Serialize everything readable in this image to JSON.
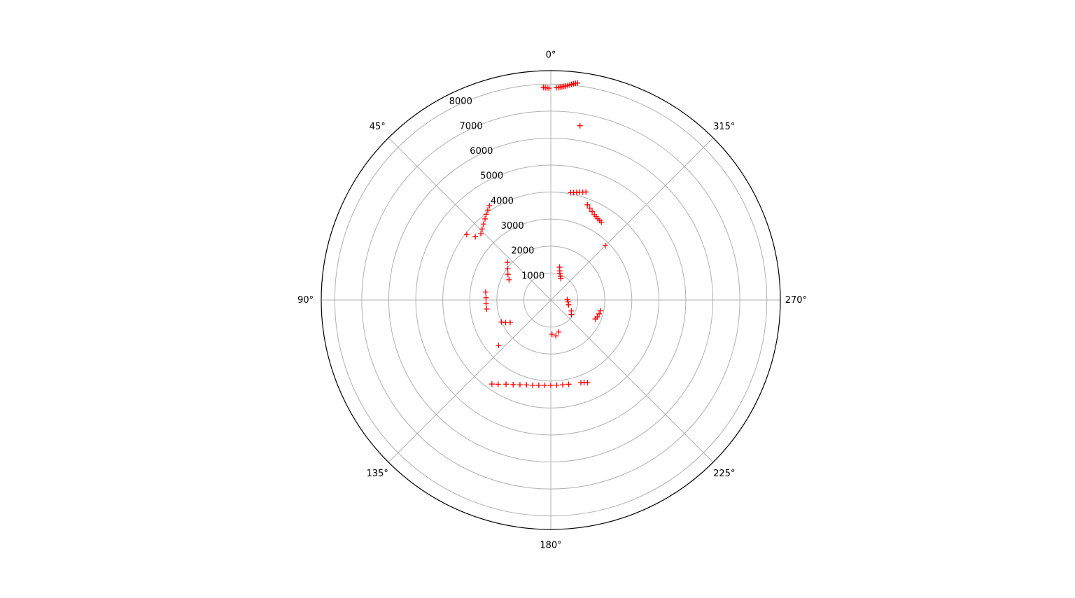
{
  "chart_data": {
    "type": "scatter",
    "projection": "polar",
    "theta_zero_location": "N",
    "theta_direction": "counterclockwise",
    "marker": "+",
    "marker_color": "#ff0000",
    "grid": true,
    "title": "",
    "rlim": [
      0,
      8500
    ],
    "r_ticks": [
      1000,
      2000,
      3000,
      4000,
      5000,
      6000,
      7000,
      8000
    ],
    "r_tick_labels": [
      "1000",
      "2000",
      "3000",
      "4000",
      "5000",
      "6000",
      "7000",
      "8000"
    ],
    "theta_ticks": [
      0,
      45,
      90,
      135,
      180,
      225,
      270,
      315
    ],
    "theta_tick_labels": [
      "0°",
      "45°",
      "90°",
      "135°",
      "180°",
      "225°",
      "270°",
      "315°"
    ],
    "series": [
      {
        "points": [
          {
            "theta": 2.0,
            "r": 7880
          },
          {
            "theta": 1.5,
            "r": 7870
          },
          {
            "theta": 1.0,
            "r": 7860
          },
          {
            "theta": 0.5,
            "r": 7850
          },
          {
            "theta": -1.5,
            "r": 7870
          },
          {
            "theta": -2.0,
            "r": 7880
          },
          {
            "theta": -2.5,
            "r": 7900
          },
          {
            "theta": -3.0,
            "r": 7910
          },
          {
            "theta": -3.5,
            "r": 7930
          },
          {
            "theta": -4.0,
            "r": 7950
          },
          {
            "theta": -4.5,
            "r": 7970
          },
          {
            "theta": -5.0,
            "r": 8000
          },
          {
            "theta": -5.5,
            "r": 8030
          },
          {
            "theta": -6.0,
            "r": 8060
          },
          {
            "theta": -6.5,
            "r": 8080
          },
          {
            "theta": -7.0,
            "r": 8100
          },
          {
            "theta": -9.5,
            "r": 6550
          },
          {
            "theta": -10.5,
            "r": 4050
          },
          {
            "theta": -12.0,
            "r": 4070
          },
          {
            "theta": -13.5,
            "r": 4100
          },
          {
            "theta": -15.0,
            "r": 4140
          },
          {
            "theta": -16.5,
            "r": 4170
          },
          {
            "theta": -18.0,
            "r": 4210
          },
          {
            "theta": -21.0,
            "r": 3780
          },
          {
            "theta": -23.0,
            "r": 3700
          },
          {
            "theta": -25.0,
            "r": 3620
          },
          {
            "theta": -27.0,
            "r": 3550
          },
          {
            "theta": -28.5,
            "r": 3520
          },
          {
            "theta": -30.0,
            "r": 3480
          },
          {
            "theta": -31.5,
            "r": 3460
          },
          {
            "theta": -33.0,
            "r": 3440
          },
          {
            "theta": -45.0,
            "r": 2850
          },
          {
            "theta": -25.0,
            "r": 880
          },
          {
            "theta": -22.0,
            "r": 950
          },
          {
            "theta": -19.0,
            "r": 1040
          },
          {
            "theta": -17.0,
            "r": 1130
          },
          {
            "theta": -15.0,
            "r": 1260
          },
          {
            "theta": -88.0,
            "r": 610
          },
          {
            "theta": -96.0,
            "r": 640
          },
          {
            "theta": -105.0,
            "r": 680
          },
          {
            "theta": -118.0,
            "r": 860
          },
          {
            "theta": -125.0,
            "r": 930
          },
          {
            "theta": -113.0,
            "r": 1790
          },
          {
            "theta": -110.0,
            "r": 1830
          },
          {
            "theta": -106.0,
            "r": 1860
          },
          {
            "theta": -102.0,
            "r": 1890
          },
          {
            "theta": -156.0,
            "r": 3350
          },
          {
            "theta": -158.0,
            "r": 3290
          },
          {
            "theta": -160.0,
            "r": 3260
          },
          {
            "theta": -166.0,
            "r": 1220
          },
          {
            "theta": -172.0,
            "r": 1340
          },
          {
            "theta": -178.0,
            "r": 1270
          },
          {
            "theta": -168.0,
            "r": 3190
          },
          {
            "theta": -172.0,
            "r": 3170
          },
          {
            "theta": -176.0,
            "r": 3160
          },
          {
            "theta": 180.0,
            "r": 3160
          },
          {
            "theta": 176.0,
            "r": 3170
          },
          {
            "theta": 172.0,
            "r": 3190
          },
          {
            "theta": 168.0,
            "r": 3230
          },
          {
            "theta": 164.0,
            "r": 3270
          },
          {
            "theta": 160.0,
            "r": 3340
          },
          {
            "theta": 156.0,
            "r": 3430
          },
          {
            "theta": 152.0,
            "r": 3530
          },
          {
            "theta": 148.0,
            "r": 3680
          },
          {
            "theta": 145.0,
            "r": 3800
          },
          {
            "theta": 131.0,
            "r": 2560
          },
          {
            "theta": 114.0,
            "r": 2000
          },
          {
            "theta": 116.5,
            "r": 1870
          },
          {
            "theta": 119.0,
            "r": 1720
          },
          {
            "theta": 98.0,
            "r": 2400
          },
          {
            "theta": 93.0,
            "r": 2400
          },
          {
            "theta": 88.0,
            "r": 2400
          },
          {
            "theta": 83.0,
            "r": 2430
          },
          {
            "theta": 64.0,
            "r": 1720
          },
          {
            "theta": 59.0,
            "r": 1850
          },
          {
            "theta": 54.0,
            "r": 1970
          },
          {
            "theta": 49.0,
            "r": 2130
          },
          {
            "theta": 52.0,
            "r": 3950
          },
          {
            "theta": 50.0,
            "r": 3650
          },
          {
            "theta": 46.5,
            "r": 3570
          },
          {
            "theta": 44.0,
            "r": 3660
          },
          {
            "theta": 41.5,
            "r": 3760
          },
          {
            "theta": 39.0,
            "r": 3870
          },
          {
            "theta": 37.0,
            "r": 3980
          },
          {
            "theta": 35.0,
            "r": 4070
          },
          {
            "theta": 33.0,
            "r": 4170
          }
        ]
      }
    ]
  }
}
